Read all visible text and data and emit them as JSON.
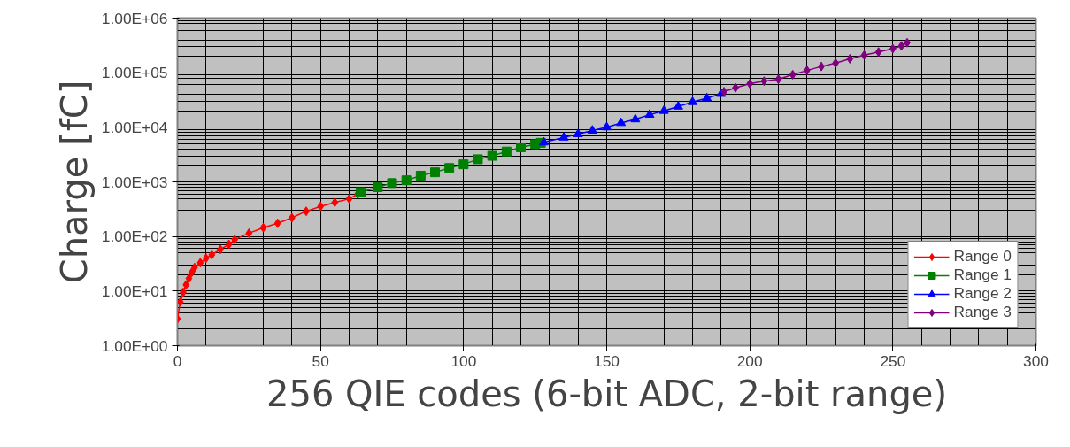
{
  "chart_data": {
    "type": "line",
    "xlabel": "256 QIE codes (6-bit ADC, 2-bit range)",
    "ylabel": "Charge [fC]",
    "log": "y",
    "grid": true,
    "legend": "bottom right",
    "line_style": "solid",
    "xlim": [
      0,
      300
    ],
    "xticks": [
      0,
      50,
      100,
      150,
      200,
      250,
      300
    ],
    "ylim": [
      1,
      1000000
    ],
    "yticks": [
      {
        "value": 1,
        "label": "1.00E+00"
      },
      {
        "value": 10,
        "label": "1.00E+01"
      },
      {
        "value": 100,
        "label": "1.00E+02"
      },
      {
        "value": 1000,
        "label": "1.00E+03"
      },
      {
        "value": 10000,
        "label": "1.00E+04"
      },
      {
        "value": 100000,
        "label": "1.00E+05"
      },
      {
        "value": 1000000,
        "label": "1.00E+06"
      }
    ],
    "series": [
      {
        "name": "Range 0",
        "color": "#ff0000",
        "marker": "diamond",
        "x": [
          0,
          1,
          2,
          3,
          4,
          5,
          6,
          8,
          10,
          12,
          15,
          18,
          20,
          25,
          30,
          35,
          40,
          45,
          50,
          55,
          60,
          63
        ],
        "values": [
          3.1,
          6.3,
          9.5,
          13,
          17,
          22,
          27,
          33,
          40,
          46,
          58,
          72,
          88,
          115,
          145,
          175,
          220,
          290,
          355,
          420,
          490,
          600
        ]
      },
      {
        "name": "Range 1",
        "color": "#008000",
        "marker": "square",
        "x": [
          64,
          70,
          75,
          80,
          85,
          90,
          95,
          100,
          105,
          110,
          115,
          120,
          125,
          127
        ],
        "values": [
          650,
          800,
          950,
          1070,
          1300,
          1500,
          1800,
          2100,
          2600,
          3000,
          3600,
          4300,
          4900,
          5200
        ]
      },
      {
        "name": "Range 2",
        "color": "#0000ff",
        "marker": "triangle",
        "x": [
          128,
          135,
          140,
          145,
          150,
          155,
          160,
          165,
          170,
          175,
          180,
          185,
          190
        ],
        "values": [
          5300,
          6500,
          7500,
          8700,
          10000,
          12000,
          14000,
          17000,
          20000,
          24000,
          29000,
          34000,
          41000
        ]
      },
      {
        "name": "Range 3",
        "color": "#800080",
        "marker": "diamond",
        "x": [
          191,
          195,
          200,
          205,
          210,
          215,
          220,
          225,
          230,
          235,
          240,
          245,
          250,
          253,
          255
        ],
        "values": [
          45000,
          53000,
          63000,
          70000,
          76000,
          92000,
          110000,
          130000,
          150000,
          180000,
          210000,
          240000,
          275000,
          310000,
          355000
        ]
      }
    ]
  }
}
